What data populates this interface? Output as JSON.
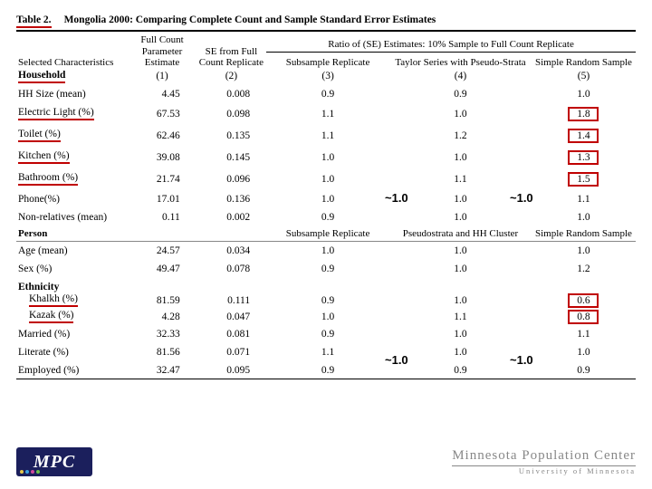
{
  "title": {
    "num": "Table 2.",
    "text": "Mongolia 2000:  Comparing Complete Count and Sample Standard Error Estimates"
  },
  "headers": {
    "ratio": "Ratio of (SE) Estimates: 10% Sample to Full Count Replicate",
    "selchar": "Selected Characteristics",
    "c1": "Full Count Parameter Estimate",
    "c2": "SE from Full Count Replicate",
    "c3": "Subsample Replicate",
    "c4": "Taylor Series with Pseudo-Strata",
    "c5": "Simple Random Sample",
    "n1": "(1)",
    "n2": "(2)",
    "n3": "(3)",
    "n4": "(4)",
    "n5": "(5)",
    "person_c3": "Subsample Replicate",
    "person_c4": "Pseudostrata and HH Cluster",
    "person_c5": "Simple Random Sample"
  },
  "hh": {
    "title": "Household",
    "rows": [
      {
        "label": "HH Size (mean)",
        "v1": "4.45",
        "v2": "0.008",
        "v3": "0.9",
        "v4": "0.9",
        "v5": "1.0",
        "ul": false,
        "box": false
      },
      {
        "label": "Electric Light (%)",
        "v1": "67.53",
        "v2": "0.098",
        "v3": "1.1",
        "v4": "1.0",
        "v5": "1.8",
        "ul": true,
        "box": true
      },
      {
        "label": "Toilet (%)",
        "v1": "62.46",
        "v2": "0.135",
        "v3": "1.1",
        "v4": "1.2",
        "v5": "1.4",
        "ul": true,
        "box": true
      },
      {
        "label": "Kitchen (%)",
        "v1": "39.08",
        "v2": "0.145",
        "v3": "1.0",
        "v4": "1.0",
        "v5": "1.3",
        "ul": true,
        "box": true
      },
      {
        "label": "Bathroom (%)",
        "v1": "21.74",
        "v2": "0.096",
        "v3": "1.0",
        "v4": "1.1",
        "v5": "1.5",
        "ul": true,
        "box": true
      },
      {
        "label": "Phone(%)",
        "v1": "17.01",
        "v2": "0.136",
        "v3": "1.0",
        "v4": "1.0",
        "v5": "1.1",
        "ul": false,
        "box": false
      },
      {
        "label": "Non-relatives (mean)",
        "v1": "0.11",
        "v2": "0.002",
        "v3": "0.9",
        "v4": "1.0",
        "v5": "1.0",
        "ul": false,
        "box": false
      }
    ]
  },
  "person": {
    "title": "Person",
    "rows": [
      {
        "label": "Age (mean)",
        "v1": "24.57",
        "v2": "0.034",
        "v3": "1.0",
        "v4": "1.0",
        "v5": "1.0",
        "ul": false,
        "box": false
      },
      {
        "label": "Sex (%)",
        "v1": "49.47",
        "v2": "0.078",
        "v3": "0.9",
        "v4": "1.0",
        "v5": "1.2",
        "ul": false,
        "box": false
      }
    ],
    "eth_title": "Ethnicity",
    "eth": [
      {
        "label": "Khalkh (%)",
        "v1": "81.59",
        "v2": "0.111",
        "v3": "0.9",
        "v4": "1.0",
        "v5": "0.6",
        "ul": true,
        "box": true
      },
      {
        "label": "Kazak (%)",
        "v1": "4.28",
        "v2": "0.047",
        "v3": "1.0",
        "v4": "1.1",
        "v5": "0.8",
        "ul": true,
        "box": true
      }
    ],
    "rest": [
      {
        "label": "Married (%)",
        "v1": "32.33",
        "v2": "0.081",
        "v3": "0.9",
        "v4": "1.0",
        "v5": "1.1",
        "ul": false,
        "box": false
      },
      {
        "label": "Literate (%)",
        "v1": "81.56",
        "v2": "0.071",
        "v3": "1.1",
        "v4": "1.0",
        "v5": "1.0",
        "ul": false,
        "box": false
      },
      {
        "label": "Employed (%)",
        "v1": "32.47",
        "v2": "0.095",
        "v3": "0.9",
        "v4": "0.9",
        "v5": "0.9",
        "ul": false,
        "box": false
      }
    ]
  },
  "annot": {
    "a1": "~1.0",
    "a2": "~1.0",
    "a3": "~1.0",
    "a4": "~1.0"
  },
  "footer": {
    "mpc": "MPC",
    "right1": "Minnesota Population Center",
    "right2": "University   of   Minnesota",
    "dot_colors": [
      "#e6c84a",
      "#3aa0e0",
      "#d04a9c",
      "#6bbf4a"
    ]
  },
  "colors": {
    "red": "#c00000"
  }
}
